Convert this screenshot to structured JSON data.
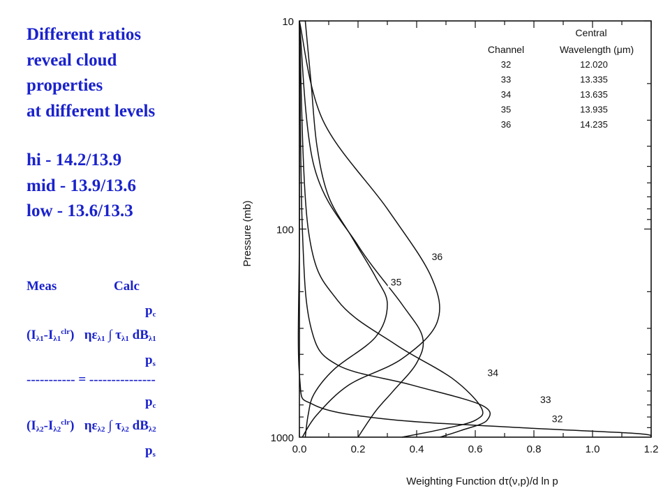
{
  "slide": {
    "title_lines": [
      "Different ratios",
      "reveal cloud",
      "properties",
      "at different levels"
    ],
    "ratios": [
      "hi - 14.2/13.9",
      "mid - 13.9/13.6",
      "low - 13.6/13.3"
    ],
    "equation": {
      "meas": "Meas",
      "calc": "Calc",
      "pc": "p",
      "pc_sub": "c",
      "ps": "p",
      "ps_sub": "s",
      "divider": "----------- = ---------------",
      "row1_text": "(I",
      "row1_sub1": "λ1",
      "row1_dash": "-I",
      "row1_sub2": "λ1",
      "row1_sup": "clr",
      "row1_close": ")",
      "row1_eta": "ηε",
      "row1_eta_sub": "λ1",
      "row1_int": "∫ τ",
      "row1_tau_sub": "λ1",
      "row1_db": "dB",
      "row1_db_sub": "λ1",
      "row2_text": "(I",
      "row2_sub1": "λ2",
      "row2_dash": "-I",
      "row2_sub2": "λ2",
      "row2_sup": "clr",
      "row2_close": ")",
      "row2_eta": "ηε",
      "row2_eta_sub": "λ2",
      "row2_int": "∫ τ",
      "row2_tau_sub": "λ2",
      "row2_db": "dB",
      "row2_db_sub": "λ2"
    }
  },
  "chart_data": {
    "type": "line",
    "xlabel": "Weighting Function dτ(ν,p)/d ln p",
    "ylabel": "Pressure (mb)",
    "x_ticks": [
      "0.0",
      "0.2",
      "0.4",
      "0.6",
      "0.8",
      "1.0",
      "1.2"
    ],
    "y_ticks": [
      "10",
      "100",
      "1000"
    ],
    "xlim": [
      0.0,
      1.2
    ],
    "ylim": [
      1000,
      10
    ],
    "y_scale": "log",
    "legend_table": {
      "header_col1": "Channel",
      "header_col2_line1": "Central",
      "header_col2_line2": "Wavelength (μm)",
      "rows": [
        {
          "channel": "32",
          "wavelength": "12.020"
        },
        {
          "channel": "33",
          "wavelength": "13.335"
        },
        {
          "channel": "34",
          "wavelength": "13.635"
        },
        {
          "channel": "35",
          "wavelength": "13.935"
        },
        {
          "channel": "36",
          "wavelength": "14.235"
        }
      ]
    },
    "series": [
      {
        "name": "32",
        "points": [
          [
            0.0,
            10
          ],
          [
            0.0,
            100
          ],
          [
            0.0,
            500
          ],
          [
            0.05,
            700
          ],
          [
            0.3,
            820
          ],
          [
            0.75,
            900
          ],
          [
            1.15,
            960
          ],
          [
            1.2,
            1000
          ]
        ]
      },
      {
        "name": "33",
        "points": [
          [
            0.0,
            10
          ],
          [
            0.01,
            100
          ],
          [
            0.04,
            300
          ],
          [
            0.13,
            450
          ],
          [
            0.38,
            560
          ],
          [
            0.62,
            700
          ],
          [
            0.64,
            830
          ],
          [
            0.55,
            930
          ],
          [
            0.48,
            1000
          ]
        ]
      },
      {
        "name": "34",
        "points": [
          [
            0.0,
            10
          ],
          [
            0.03,
            100
          ],
          [
            0.13,
            220
          ],
          [
            0.33,
            360
          ],
          [
            0.52,
            520
          ],
          [
            0.62,
            720
          ],
          [
            0.6,
            830
          ],
          [
            0.48,
            920
          ],
          [
            0.35,
            1000
          ]
        ]
      },
      {
        "name": "35",
        "points": [
          [
            0.0,
            10
          ],
          [
            0.05,
            50
          ],
          [
            0.2,
            120
          ],
          [
            0.35,
            230
          ],
          [
            0.42,
            330
          ],
          [
            0.4,
            440
          ],
          [
            0.32,
            600
          ],
          [
            0.26,
            750
          ],
          [
            0.2,
            1000
          ]
        ]
      },
      {
        "name": "36",
        "points": [
          [
            0.0,
            10
          ],
          [
            0.08,
            30
          ],
          [
            0.3,
            80
          ],
          [
            0.45,
            170
          ],
          [
            0.47,
            280
          ],
          [
            0.35,
            420
          ],
          [
            0.17,
            560
          ],
          [
            0.06,
            780
          ],
          [
            0.01,
            1000
          ]
        ]
      },
      {
        "name": "",
        "points": [
          [
            0.02,
            10
          ],
          [
            0.04,
            20
          ],
          [
            0.06,
            40
          ],
          [
            0.1,
            70
          ],
          [
            0.18,
            110
          ],
          [
            0.26,
            170
          ],
          [
            0.3,
            230
          ],
          [
            0.26,
            330
          ],
          [
            0.12,
            470
          ],
          [
            0.05,
            620
          ],
          [
            0.03,
            780
          ],
          [
            0.02,
            1000
          ]
        ]
      }
    ],
    "curve_labels": [
      {
        "text": "36",
        "x": 0.47,
        "y": 140
      },
      {
        "text": "35",
        "x": 0.33,
        "y": 185
      },
      {
        "text": "34",
        "x": 0.66,
        "y": 505
      },
      {
        "text": "33",
        "x": 0.84,
        "y": 680
      },
      {
        "text": "32",
        "x": 0.88,
        "y": 840
      }
    ]
  }
}
